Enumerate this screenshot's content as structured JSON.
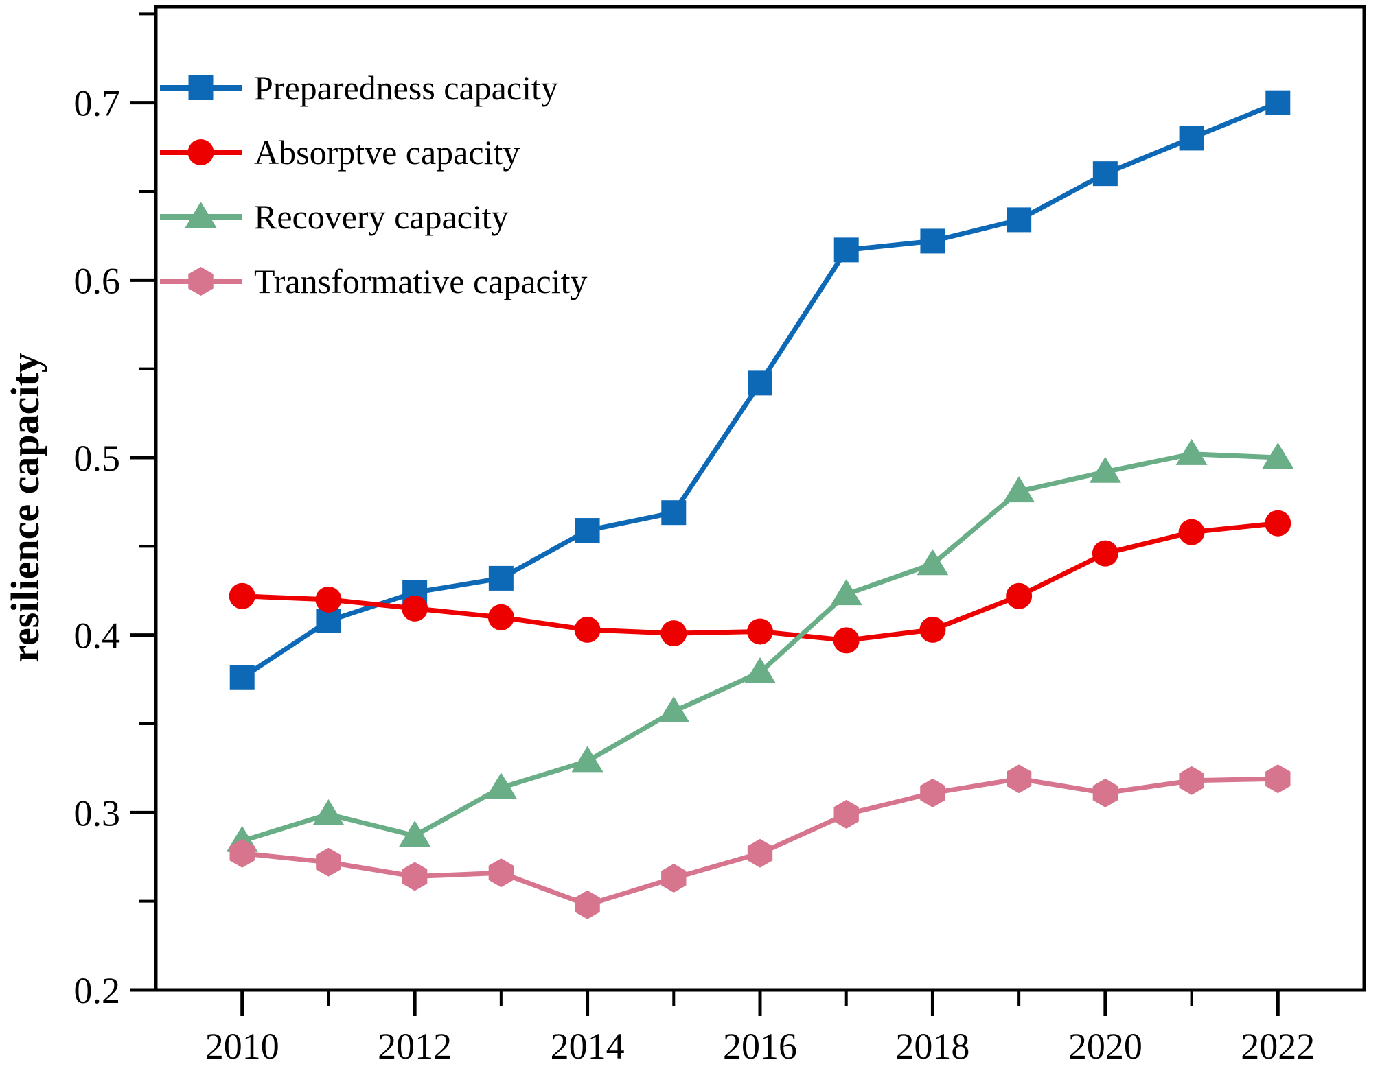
{
  "figure": {
    "background": "#ffffff",
    "axis_color": "#000000"
  },
  "chart_data": {
    "type": "line",
    "title": "",
    "xlabel": "",
    "ylabel": "resilience capacity",
    "x": [
      2010,
      2011,
      2012,
      2013,
      2014,
      2015,
      2016,
      2017,
      2018,
      2019,
      2020,
      2021,
      2022
    ],
    "series": [
      {
        "name": "Preparedness capacity",
        "marker": "square",
        "color": "#0D68B6",
        "values": [
          0.376,
          0.408,
          0.424,
          0.432,
          0.459,
          0.469,
          0.542,
          0.617,
          0.622,
          0.634,
          0.66,
          0.68,
          0.7
        ]
      },
      {
        "name": "Absorptve capacity",
        "marker": "circle",
        "color": "#ED0000",
        "values": [
          0.422,
          0.42,
          0.415,
          0.41,
          0.403,
          0.401,
          0.402,
          0.397,
          0.403,
          0.422,
          0.446,
          0.458,
          0.463
        ]
      },
      {
        "name": "Recovery capacity",
        "marker": "triangle",
        "color": "#69AE87",
        "values": [
          0.284,
          0.299,
          0.287,
          0.314,
          0.329,
          0.357,
          0.379,
          0.423,
          0.44,
          0.481,
          0.492,
          0.502,
          0.5
        ]
      },
      {
        "name": "Transformative capacity",
        "marker": "hexagon",
        "color": "#D7758F",
        "values": [
          0.277,
          0.272,
          0.264,
          0.266,
          0.248,
          0.263,
          0.277,
          0.299,
          0.311,
          0.319,
          0.311,
          0.318,
          0.319
        ]
      }
    ],
    "xlim": [
      2009.0,
      2023.0
    ],
    "ylim": [
      0.2,
      0.754
    ],
    "x_major_ticks": [
      2010,
      2012,
      2014,
      2016,
      2018,
      2020,
      2022
    ],
    "x_tick_labels": [
      "2010",
      "2012",
      "2014",
      "2016",
      "2018",
      "2020",
      "2022"
    ],
    "x_minor_ticks": [
      2011,
      2013,
      2015,
      2017,
      2019,
      2021
    ],
    "y_major_ticks": [
      0.2,
      0.3,
      0.4,
      0.5,
      0.6,
      0.7
    ],
    "y_tick_labels": [
      "0.2",
      "0.3",
      "0.4",
      "0.5",
      "0.6",
      "0.7"
    ],
    "y_minor_ticks": [
      0.25,
      0.35,
      0.45,
      0.55,
      0.65,
      0.75
    ],
    "grid": false,
    "legend_position": "top-left",
    "frame": "box"
  }
}
